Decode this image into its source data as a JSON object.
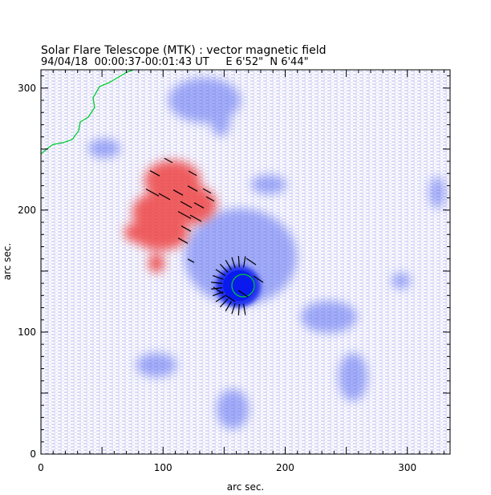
{
  "title": "Solar Flare Telescope (MTK) : vector magnetic field",
  "subtitle": "94/04/18  00:00:37-00:01:43 UT     E 6'52\"  N 6'44\"",
  "x_axis": {
    "label": "arc sec.",
    "range": [
      0,
      335
    ],
    "ticks": [
      "0",
      "100",
      "200",
      "300"
    ],
    "tick_values": [
      0,
      100,
      200,
      300
    ]
  },
  "y_axis": {
    "label": "arc sec.",
    "range": [
      0,
      315
    ],
    "ticks": [
      "0",
      "100",
      "200",
      "300"
    ],
    "tick_values": [
      0,
      100,
      200,
      300
    ]
  },
  "colors": {
    "positive_polarity": "#ee3333",
    "negative_polarity": "#3344ee",
    "limb_contour": "#00cc33",
    "axes": "#000000",
    "vectors": "#000000"
  }
}
